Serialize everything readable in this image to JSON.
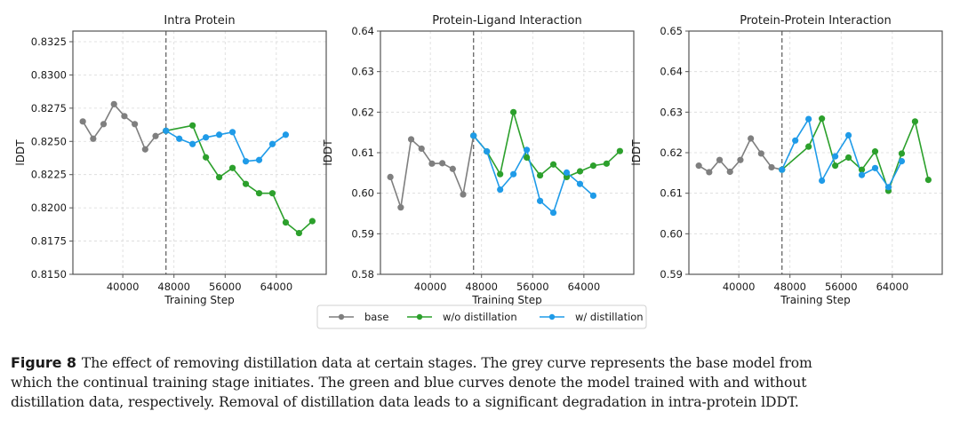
{
  "legend": {
    "placement": "bottom-center",
    "entries": [
      {
        "name": "base",
        "color": "#7f7f7f"
      },
      {
        "name": "w/o distillation",
        "color": "#2ca02c"
      },
      {
        "name": "w/ distillation",
        "color": "#1f9be8"
      }
    ]
  },
  "caption": {
    "label": "Figure 8",
    "lines": [
      "The effect of removing distillation data at certain stages. The grey curve represents the base model from",
      "which the continual training stage initiates. The green and blue curves denote the model trained with and without",
      "distillation data, respectively. Removal of distillation data leads to a significant degradation in intra-protein lDDT."
    ]
  },
  "chart_data": [
    {
      "type": "line",
      "title": "Intra Protein",
      "xlabel": "Training Step",
      "ylabel": "lDDT",
      "xlim": [
        32200,
        71800
      ],
      "ylim": [
        0.815,
        0.8333
      ],
      "xticks": [
        40000,
        48000,
        56000,
        64000
      ],
      "xtick_labels": [
        "40000",
        "48000",
        "56000",
        "64000"
      ],
      "yticks": [
        0.815,
        0.8175,
        0.82,
        0.8225,
        0.825,
        0.8275,
        0.83,
        0.8325
      ],
      "ytick_labels": [
        "0.8150",
        "0.8175",
        "0.8200",
        "0.8225",
        "0.8250",
        "0.8275",
        "0.8300",
        "0.8325"
      ],
      "grid": true,
      "vline": 46750,
      "series": [
        {
          "name": "base",
          "x": [
            33750,
            35375,
            37000,
            38625,
            40250,
            41875,
            43500,
            45125,
            46750
          ],
          "y": [
            0.8265,
            0.8252,
            0.8263,
            0.8278,
            0.8269,
            0.8263,
            0.8244,
            0.8254,
            0.8258
          ]
        },
        {
          "name": "w/o distillation",
          "x": [
            46750,
            50910,
            52990,
            55070,
            57150,
            59230,
            61310,
            63390,
            65470,
            67550,
            69630
          ],
          "y": [
            0.8258,
            0.8262,
            0.8238,
            0.8223,
            0.823,
            0.8218,
            0.8211,
            0.8211,
            0.8189,
            0.8181,
            0.819
          ]
        },
        {
          "name": "w/ distillation",
          "x": [
            46750,
            48830,
            50910,
            52990,
            55070,
            57150,
            59230,
            61310,
            63390,
            65470
          ],
          "y": [
            0.8258,
            0.8252,
            0.8248,
            0.8253,
            0.8255,
            0.8257,
            0.8235,
            0.8236,
            0.8248,
            0.8255
          ]
        }
      ]
    },
    {
      "type": "line",
      "title": "Protein-Ligand Interaction",
      "xlabel": "Training Step",
      "ylabel": "lDDT",
      "xlim": [
        32200,
        71800
      ],
      "ylim": [
        0.58,
        0.64
      ],
      "xticks": [
        40000,
        48000,
        56000,
        64000
      ],
      "xtick_labels": [
        "40000",
        "48000",
        "56000",
        "64000"
      ],
      "yticks": [
        0.58,
        0.59,
        0.6,
        0.61,
        0.62,
        0.63,
        0.64
      ],
      "ytick_labels": [
        "0.58",
        "0.59",
        "0.60",
        "0.61",
        "0.62",
        "0.63",
        "0.64"
      ],
      "grid": true,
      "vline": 46750,
      "series": [
        {
          "name": "base",
          "x": [
            33750,
            35375,
            37000,
            38625,
            40250,
            41875,
            43500,
            45125,
            46750
          ],
          "y": [
            0.604,
            0.5965,
            0.6133,
            0.611,
            0.6073,
            0.6074,
            0.606,
            0.5997,
            0.6142
          ]
        },
        {
          "name": "w/o distillation",
          "x": [
            46750,
            48830,
            50910,
            52990,
            55070,
            57150,
            59230,
            61310,
            63390,
            65470,
            67550,
            69630
          ],
          "y": [
            0.6142,
            0.6103,
            0.6047,
            0.62,
            0.6088,
            0.6044,
            0.6071,
            0.604,
            0.6054,
            0.6068,
            0.6073,
            0.6104
          ]
        },
        {
          "name": "w/ distillation",
          "x": [
            46750,
            48830,
            50910,
            52990,
            55070,
            57150,
            59230,
            61310,
            63390,
            65470
          ],
          "y": [
            0.6142,
            0.6103,
            0.6009,
            0.6047,
            0.6107,
            0.5981,
            0.5952,
            0.6051,
            0.6023,
            0.5994
          ]
        }
      ]
    },
    {
      "type": "line",
      "title": "Protein-Protein Interaction",
      "xlabel": "Training Step",
      "ylabel": "lDDT",
      "xlim": [
        32200,
        71800
      ],
      "ylim": [
        0.59,
        0.65
      ],
      "xticks": [
        40000,
        48000,
        56000,
        64000
      ],
      "xtick_labels": [
        "40000",
        "48000",
        "56000",
        "64000"
      ],
      "yticks": [
        0.59,
        0.6,
        0.61,
        0.62,
        0.63,
        0.64,
        0.65
      ],
      "ytick_labels": [
        "0.59",
        "0.60",
        "0.61",
        "0.62",
        "0.63",
        "0.64",
        "0.65"
      ],
      "grid": true,
      "vline": 46750,
      "series": [
        {
          "name": "base",
          "x": [
            33750,
            35375,
            37000,
            38625,
            40250,
            41875,
            43500,
            45125,
            46750
          ],
          "y": [
            0.6168,
            0.6152,
            0.6182,
            0.6153,
            0.6182,
            0.6235,
            0.6198,
            0.6164,
            0.6158
          ]
        },
        {
          "name": "w/o distillation",
          "x": [
            46750,
            50910,
            52990,
            55070,
            57150,
            59230,
            61310,
            63390,
            65470,
            67550,
            69630
          ],
          "y": [
            0.6158,
            0.6215,
            0.6284,
            0.6168,
            0.6188,
            0.6158,
            0.6203,
            0.6106,
            0.6198,
            0.6277,
            0.6133
          ]
        },
        {
          "name": "w/ distillation",
          "x": [
            46750,
            48830,
            50910,
            52990,
            55070,
            57150,
            59230,
            61310,
            63390,
            65470
          ],
          "y": [
            0.6158,
            0.623,
            0.6283,
            0.6131,
            0.6191,
            0.6243,
            0.6145,
            0.6162,
            0.6115,
            0.6179
          ]
        }
      ]
    }
  ]
}
